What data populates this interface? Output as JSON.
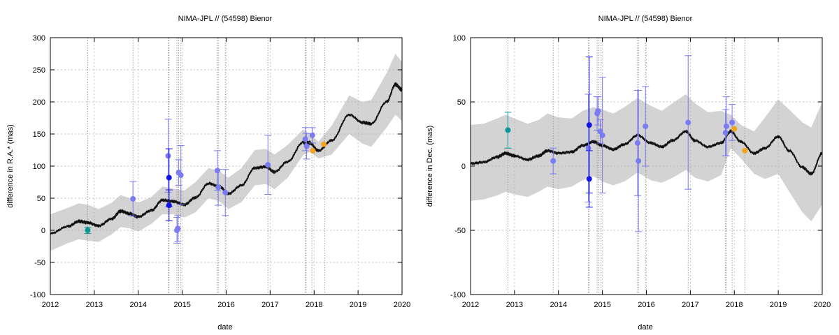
{
  "chart_data": [
    {
      "type": "line",
      "title": "NIMA-JPL // (54598) Bienor",
      "xlabel": "date",
      "ylabel": "difference in R.A.* (mas)",
      "xlim": [
        2012,
        2020
      ],
      "ylim": [
        -100,
        300
      ],
      "xticks": [
        "2012",
        "2013",
        "2014",
        "2015",
        "2016",
        "2017",
        "2018",
        "2019",
        "2020"
      ],
      "yticks": [
        "-100",
        "-50",
        "0",
        "50",
        "100",
        "150",
        "200",
        "250",
        "300"
      ],
      "grid": true,
      "vlines": [
        2012.85,
        2013.88,
        2014.68,
        2014.7,
        2014.88,
        2014.92,
        2014.97,
        2015.8,
        2015.82,
        2015.98,
        2016.95,
        2017.8,
        2017.82,
        2017.95,
        2018.24
      ],
      "band_color": "#d3d3d3",
      "curve_color": "#111111",
      "series": [
        {
          "color": "#0c9595",
          "points": [
            {
              "x": 2012.85,
              "y": 0,
              "err": 5
            }
          ]
        },
        {
          "color": "#7b7bf2",
          "points": [
            {
              "x": 2013.88,
              "y": 49,
              "err": 27
            },
            {
              "x": 2014.68,
              "y": 116,
              "err": 57
            },
            {
              "x": 2014.88,
              "y": 0,
              "err": 20
            },
            {
              "x": 2014.9,
              "y": 3,
              "err": 20
            },
            {
              "x": 2014.92,
              "y": 90,
              "err": 20
            },
            {
              "x": 2014.97,
              "y": 86,
              "err": 46
            },
            {
              "x": 2015.8,
              "y": 93,
              "err": 31
            },
            {
              "x": 2015.82,
              "y": 67,
              "err": 28
            },
            {
              "x": 2015.98,
              "y": 59,
              "err": 36
            },
            {
              "x": 2016.95,
              "y": 102,
              "err": 46
            },
            {
              "x": 2017.8,
              "y": 142,
              "err": 18
            },
            {
              "x": 2017.83,
              "y": 131,
              "err": 20
            },
            {
              "x": 2017.96,
              "y": 148,
              "err": 12
            }
          ]
        },
        {
          "color": "#1414e6",
          "points": [
            {
              "x": 2014.7,
              "y": 82,
              "err": 45
            },
            {
              "x": 2014.7,
              "y": 39,
              "err": 24
            }
          ]
        },
        {
          "color": "#f5a41e",
          "points": [
            {
              "x": 2017.97,
              "y": 124,
              "err": 0
            },
            {
              "x": 2018.22,
              "y": 134,
              "err": 0
            }
          ]
        }
      ],
      "model": [
        {
          "x": 2012.0,
          "y": -5,
          "lo": -32,
          "hi": 25
        },
        {
          "x": 2012.4,
          "y": 6,
          "lo": -20,
          "hi": 35
        },
        {
          "x": 2012.65,
          "y": 14,
          "lo": -14,
          "hi": 42
        },
        {
          "x": 2012.85,
          "y": 12,
          "lo": -16,
          "hi": 40
        },
        {
          "x": 2013.1,
          "y": 7,
          "lo": -18,
          "hi": 33
        },
        {
          "x": 2013.4,
          "y": 18,
          "lo": -6,
          "hi": 43
        },
        {
          "x": 2013.6,
          "y": 30,
          "lo": 5,
          "hi": 55
        },
        {
          "x": 2013.8,
          "y": 26,
          "lo": 3,
          "hi": 50
        },
        {
          "x": 2014.0,
          "y": 21,
          "lo": -2,
          "hi": 43
        },
        {
          "x": 2014.3,
          "y": 31,
          "lo": 10,
          "hi": 52
        },
        {
          "x": 2014.55,
          "y": 47,
          "lo": 25,
          "hi": 68
        },
        {
          "x": 2014.8,
          "y": 45,
          "lo": 25,
          "hi": 65
        },
        {
          "x": 2015.05,
          "y": 40,
          "lo": 20,
          "hi": 62
        },
        {
          "x": 2015.3,
          "y": 51,
          "lo": 28,
          "hi": 75
        },
        {
          "x": 2015.6,
          "y": 73,
          "lo": 50,
          "hi": 97
        },
        {
          "x": 2015.85,
          "y": 68,
          "lo": 45,
          "hi": 92
        },
        {
          "x": 2016.05,
          "y": 57,
          "lo": 33,
          "hi": 82
        },
        {
          "x": 2016.35,
          "y": 70,
          "lo": 44,
          "hi": 97
        },
        {
          "x": 2016.65,
          "y": 97,
          "lo": 70,
          "hi": 125
        },
        {
          "x": 2016.9,
          "y": 99,
          "lo": 72,
          "hi": 127
        },
        {
          "x": 2017.1,
          "y": 91,
          "lo": 64,
          "hi": 118
        },
        {
          "x": 2017.4,
          "y": 107,
          "lo": 82,
          "hi": 133
        },
        {
          "x": 2017.75,
          "y": 137,
          "lo": 117,
          "hi": 157
        },
        {
          "x": 2017.9,
          "y": 136,
          "lo": 122,
          "hi": 150
        },
        {
          "x": 2018.1,
          "y": 124,
          "lo": 112,
          "hi": 138
        },
        {
          "x": 2018.4,
          "y": 140,
          "lo": 118,
          "hi": 163
        },
        {
          "x": 2018.8,
          "y": 180,
          "lo": 150,
          "hi": 210
        },
        {
          "x": 2019.1,
          "y": 168,
          "lo": 135,
          "hi": 200
        },
        {
          "x": 2019.3,
          "y": 166,
          "lo": 130,
          "hi": 203
        },
        {
          "x": 2019.65,
          "y": 200,
          "lo": 160,
          "hi": 245
        },
        {
          "x": 2019.85,
          "y": 227,
          "lo": 180,
          "hi": 275
        },
        {
          "x": 2020.0,
          "y": 219,
          "lo": 170,
          "hi": 262
        }
      ]
    },
    {
      "type": "line",
      "title": "NIMA-JPL // (54598) Bienor",
      "xlabel": "date",
      "ylabel": "difference in Dec. (mas)",
      "xlim": [
        2012,
        2020
      ],
      "ylim": [
        -100,
        100
      ],
      "xticks": [
        "2012",
        "2013",
        "2014",
        "2015",
        "2016",
        "2017",
        "2018",
        "2019",
        "2020"
      ],
      "yticks": [
        "-100",
        "-50",
        "0",
        "50",
        "100"
      ],
      "grid": true,
      "vlines": [
        2012.85,
        2013.88,
        2014.68,
        2014.7,
        2014.88,
        2014.92,
        2014.97,
        2015.8,
        2015.82,
        2015.98,
        2016.95,
        2017.8,
        2017.82,
        2017.95,
        2018.24
      ],
      "band_color": "#d3d3d3",
      "curve_color": "#111111",
      "series": [
        {
          "color": "#0c9595",
          "points": [
            {
              "x": 2012.85,
              "y": 28,
              "err": 14
            }
          ]
        },
        {
          "color": "#7b7bf2",
          "points": [
            {
              "x": 2013.88,
              "y": 4,
              "err": 10
            },
            {
              "x": 2014.68,
              "y": 14,
              "err": 42
            },
            {
              "x": 2014.88,
              "y": 41,
              "err": 13
            },
            {
              "x": 2014.9,
              "y": 43,
              "err": 11
            },
            {
              "x": 2014.95,
              "y": 27,
              "err": 9
            },
            {
              "x": 2015.0,
              "y": 24,
              "err": 45
            },
            {
              "x": 2015.8,
              "y": 18,
              "err": 41
            },
            {
              "x": 2015.82,
              "y": 4,
              "err": 55
            },
            {
              "x": 2015.98,
              "y": 31,
              "err": 31
            },
            {
              "x": 2016.95,
              "y": 34,
              "err": 52
            },
            {
              "x": 2017.8,
              "y": 26,
              "err": 18
            },
            {
              "x": 2017.82,
              "y": 31,
              "err": 23
            },
            {
              "x": 2017.95,
              "y": 34,
              "err": 14
            }
          ]
        },
        {
          "color": "#1414e6",
          "points": [
            {
              "x": 2014.7,
              "y": 32,
              "err": 53
            },
            {
              "x": 2014.7,
              "y": -10,
              "err": 22
            }
          ]
        },
        {
          "color": "#f5a41e",
          "points": [
            {
              "x": 2018.0,
              "y": 29,
              "err": 0
            },
            {
              "x": 2018.24,
              "y": 12,
              "err": 0
            }
          ]
        }
      ],
      "model": [
        {
          "x": 2012.0,
          "y": 2,
          "lo": -27,
          "hi": 32
        },
        {
          "x": 2012.3,
          "y": 3,
          "lo": -26,
          "hi": 33
        },
        {
          "x": 2012.6,
          "y": 7,
          "lo": -23,
          "hi": 37
        },
        {
          "x": 2012.8,
          "y": 10,
          "lo": -20,
          "hi": 40
        },
        {
          "x": 2013.0,
          "y": 8,
          "lo": -22,
          "hi": 37
        },
        {
          "x": 2013.3,
          "y": 5,
          "lo": -24,
          "hi": 33
        },
        {
          "x": 2013.55,
          "y": 8,
          "lo": -20,
          "hi": 36
        },
        {
          "x": 2013.75,
          "y": 12,
          "lo": -16,
          "hi": 41
        },
        {
          "x": 2014.0,
          "y": 10,
          "lo": -18,
          "hi": 38
        },
        {
          "x": 2014.3,
          "y": 11,
          "lo": -16,
          "hi": 37
        },
        {
          "x": 2014.55,
          "y": 16,
          "lo": -11,
          "hi": 43
        },
        {
          "x": 2014.8,
          "y": 19,
          "lo": -8,
          "hi": 46
        },
        {
          "x": 2015.0,
          "y": 16,
          "lo": -12,
          "hi": 44
        },
        {
          "x": 2015.25,
          "y": 13,
          "lo": -15,
          "hi": 41
        },
        {
          "x": 2015.5,
          "y": 17,
          "lo": -12,
          "hi": 46
        },
        {
          "x": 2015.8,
          "y": 24,
          "lo": -5,
          "hi": 53
        },
        {
          "x": 2016.1,
          "y": 18,
          "lo": -11,
          "hi": 47
        },
        {
          "x": 2016.35,
          "y": 15,
          "lo": -13,
          "hi": 43
        },
        {
          "x": 2016.6,
          "y": 20,
          "lo": -9,
          "hi": 49
        },
        {
          "x": 2016.9,
          "y": 27,
          "lo": -3,
          "hi": 56
        },
        {
          "x": 2017.1,
          "y": 20,
          "lo": -9,
          "hi": 49
        },
        {
          "x": 2017.4,
          "y": 15,
          "lo": -12,
          "hi": 42
        },
        {
          "x": 2017.7,
          "y": 18,
          "lo": -7,
          "hi": 43
        },
        {
          "x": 2017.92,
          "y": 27,
          "lo": 14,
          "hi": 40
        },
        {
          "x": 2018.15,
          "y": 19,
          "lo": 6,
          "hi": 32
        },
        {
          "x": 2018.45,
          "y": 10,
          "lo": -6,
          "hi": 27
        },
        {
          "x": 2018.7,
          "y": 14,
          "lo": -10,
          "hi": 38
        },
        {
          "x": 2019.0,
          "y": 23,
          "lo": -6,
          "hi": 52
        },
        {
          "x": 2019.25,
          "y": 12,
          "lo": -20,
          "hi": 44
        },
        {
          "x": 2019.55,
          "y": -1,
          "lo": -36,
          "hi": 34
        },
        {
          "x": 2019.75,
          "y": -6,
          "lo": -43,
          "hi": 30
        },
        {
          "x": 2020.0,
          "y": 10,
          "lo": -30,
          "hi": 50
        }
      ]
    }
  ]
}
